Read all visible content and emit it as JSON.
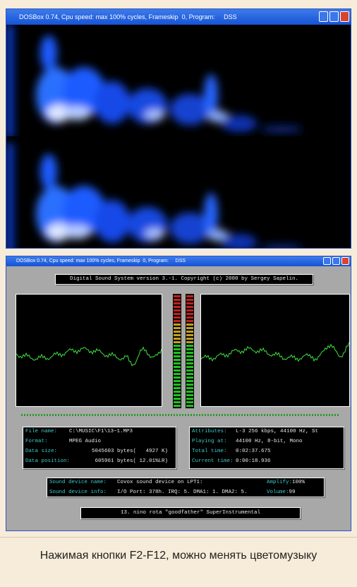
{
  "window1": {
    "title": "DOSBox 0.74, Cpu speed: max 100% cycles, Frameskip  0, Program:     DSS"
  },
  "window2": {
    "title": "DOSBox 0.74, Cpu speed: max 100% cycles, Frameskip  0, Program:     DSS"
  },
  "dss": {
    "header": "Digital Sound System version 3.-1. Copyright (c) 2000 by Sergey Sapelin.",
    "file_info": [
      [
        "File name:",
        "C:\\MUSIC\\F1\\13~1.MP3"
      ],
      [
        "Format:",
        "MPEG Audio"
      ],
      [
        "Data size:",
        "5045603 bytes(   4927 K)"
      ],
      [
        "Data position:",
        "605961 bytes( 12.01%LR)"
      ]
    ],
    "play_info": [
      [
        "Attributes:",
        "L-3 256 kbps, 44100 Hz, St"
      ],
      [
        "Playing at:",
        "44100 Hz, 8-bit, Mono"
      ],
      [
        "Total time:",
        "0:02:37.675"
      ],
      [
        "Current time:",
        "0:00:18.936"
      ]
    ],
    "device": [
      [
        "Sound device name:",
        "Covox sound device on LPT1:",
        "Amplify:",
        "100%"
      ],
      [
        "Sound device info:",
        "I/O Port: 378h. IRQ: 5. DMA1: 1. DMA2: 5.",
        "Volume:",
        "99"
      ]
    ],
    "track": "13. nino rota \"goodfather\" SuperInstrumental"
  },
  "caption": "Нажимая кнопки F2-F12, можно менять цветомузыку"
}
